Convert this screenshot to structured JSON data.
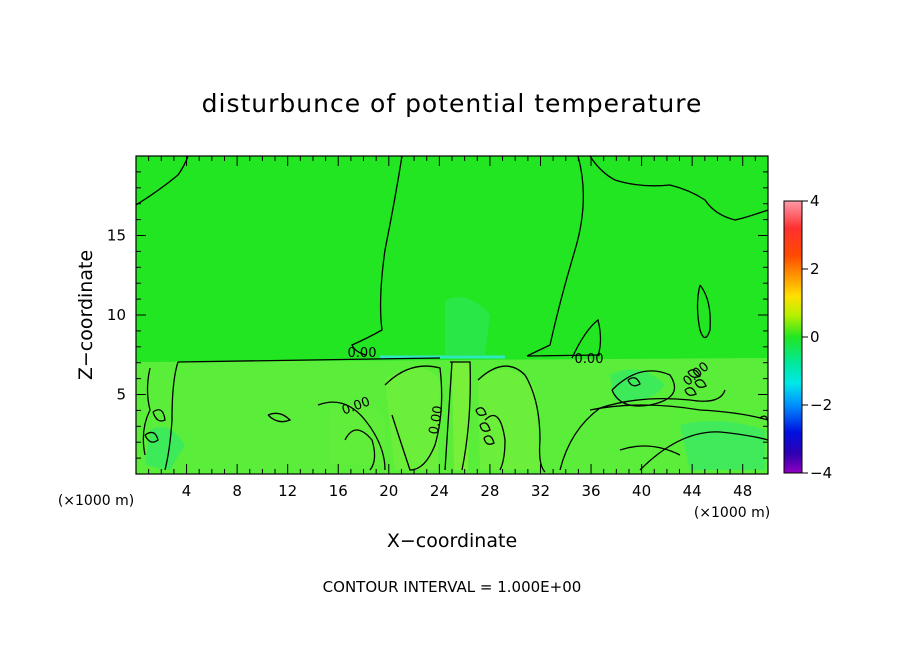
{
  "chart_data": {
    "type": "heatmap",
    "title": "disturbunce of potential temperature",
    "xlabel": "X−coordinate",
    "ylabel": "Z−coordinate",
    "x_unit": "(×1000 m)",
    "xlim": [
      0,
      50
    ],
    "ylim": [
      0,
      20
    ],
    "x_ticks": [
      4,
      8,
      12,
      16,
      20,
      24,
      28,
      32,
      36,
      40,
      44,
      48
    ],
    "y_ticks": [
      5,
      10,
      15
    ],
    "colorbar": {
      "min": -4,
      "max": 4,
      "ticks": [
        4,
        2,
        0,
        -2,
        -4
      ]
    },
    "contour_interval_text": "CONTOUR INTERVAL = 1.000E+00",
    "contour_labels": [
      "0.00",
      "0.00",
      "0.00",
      "0.00",
      "0.00"
    ],
    "field_description_values": {
      "upper_region_value": 0.0,
      "lower_region_value": 0.3,
      "layer_top_z": 7.2
    },
    "colors": {
      "zero": "#22e622",
      "lower_layer": "#5aee3a",
      "slight_negative": "#30e868",
      "contour": "#000000"
    }
  }
}
